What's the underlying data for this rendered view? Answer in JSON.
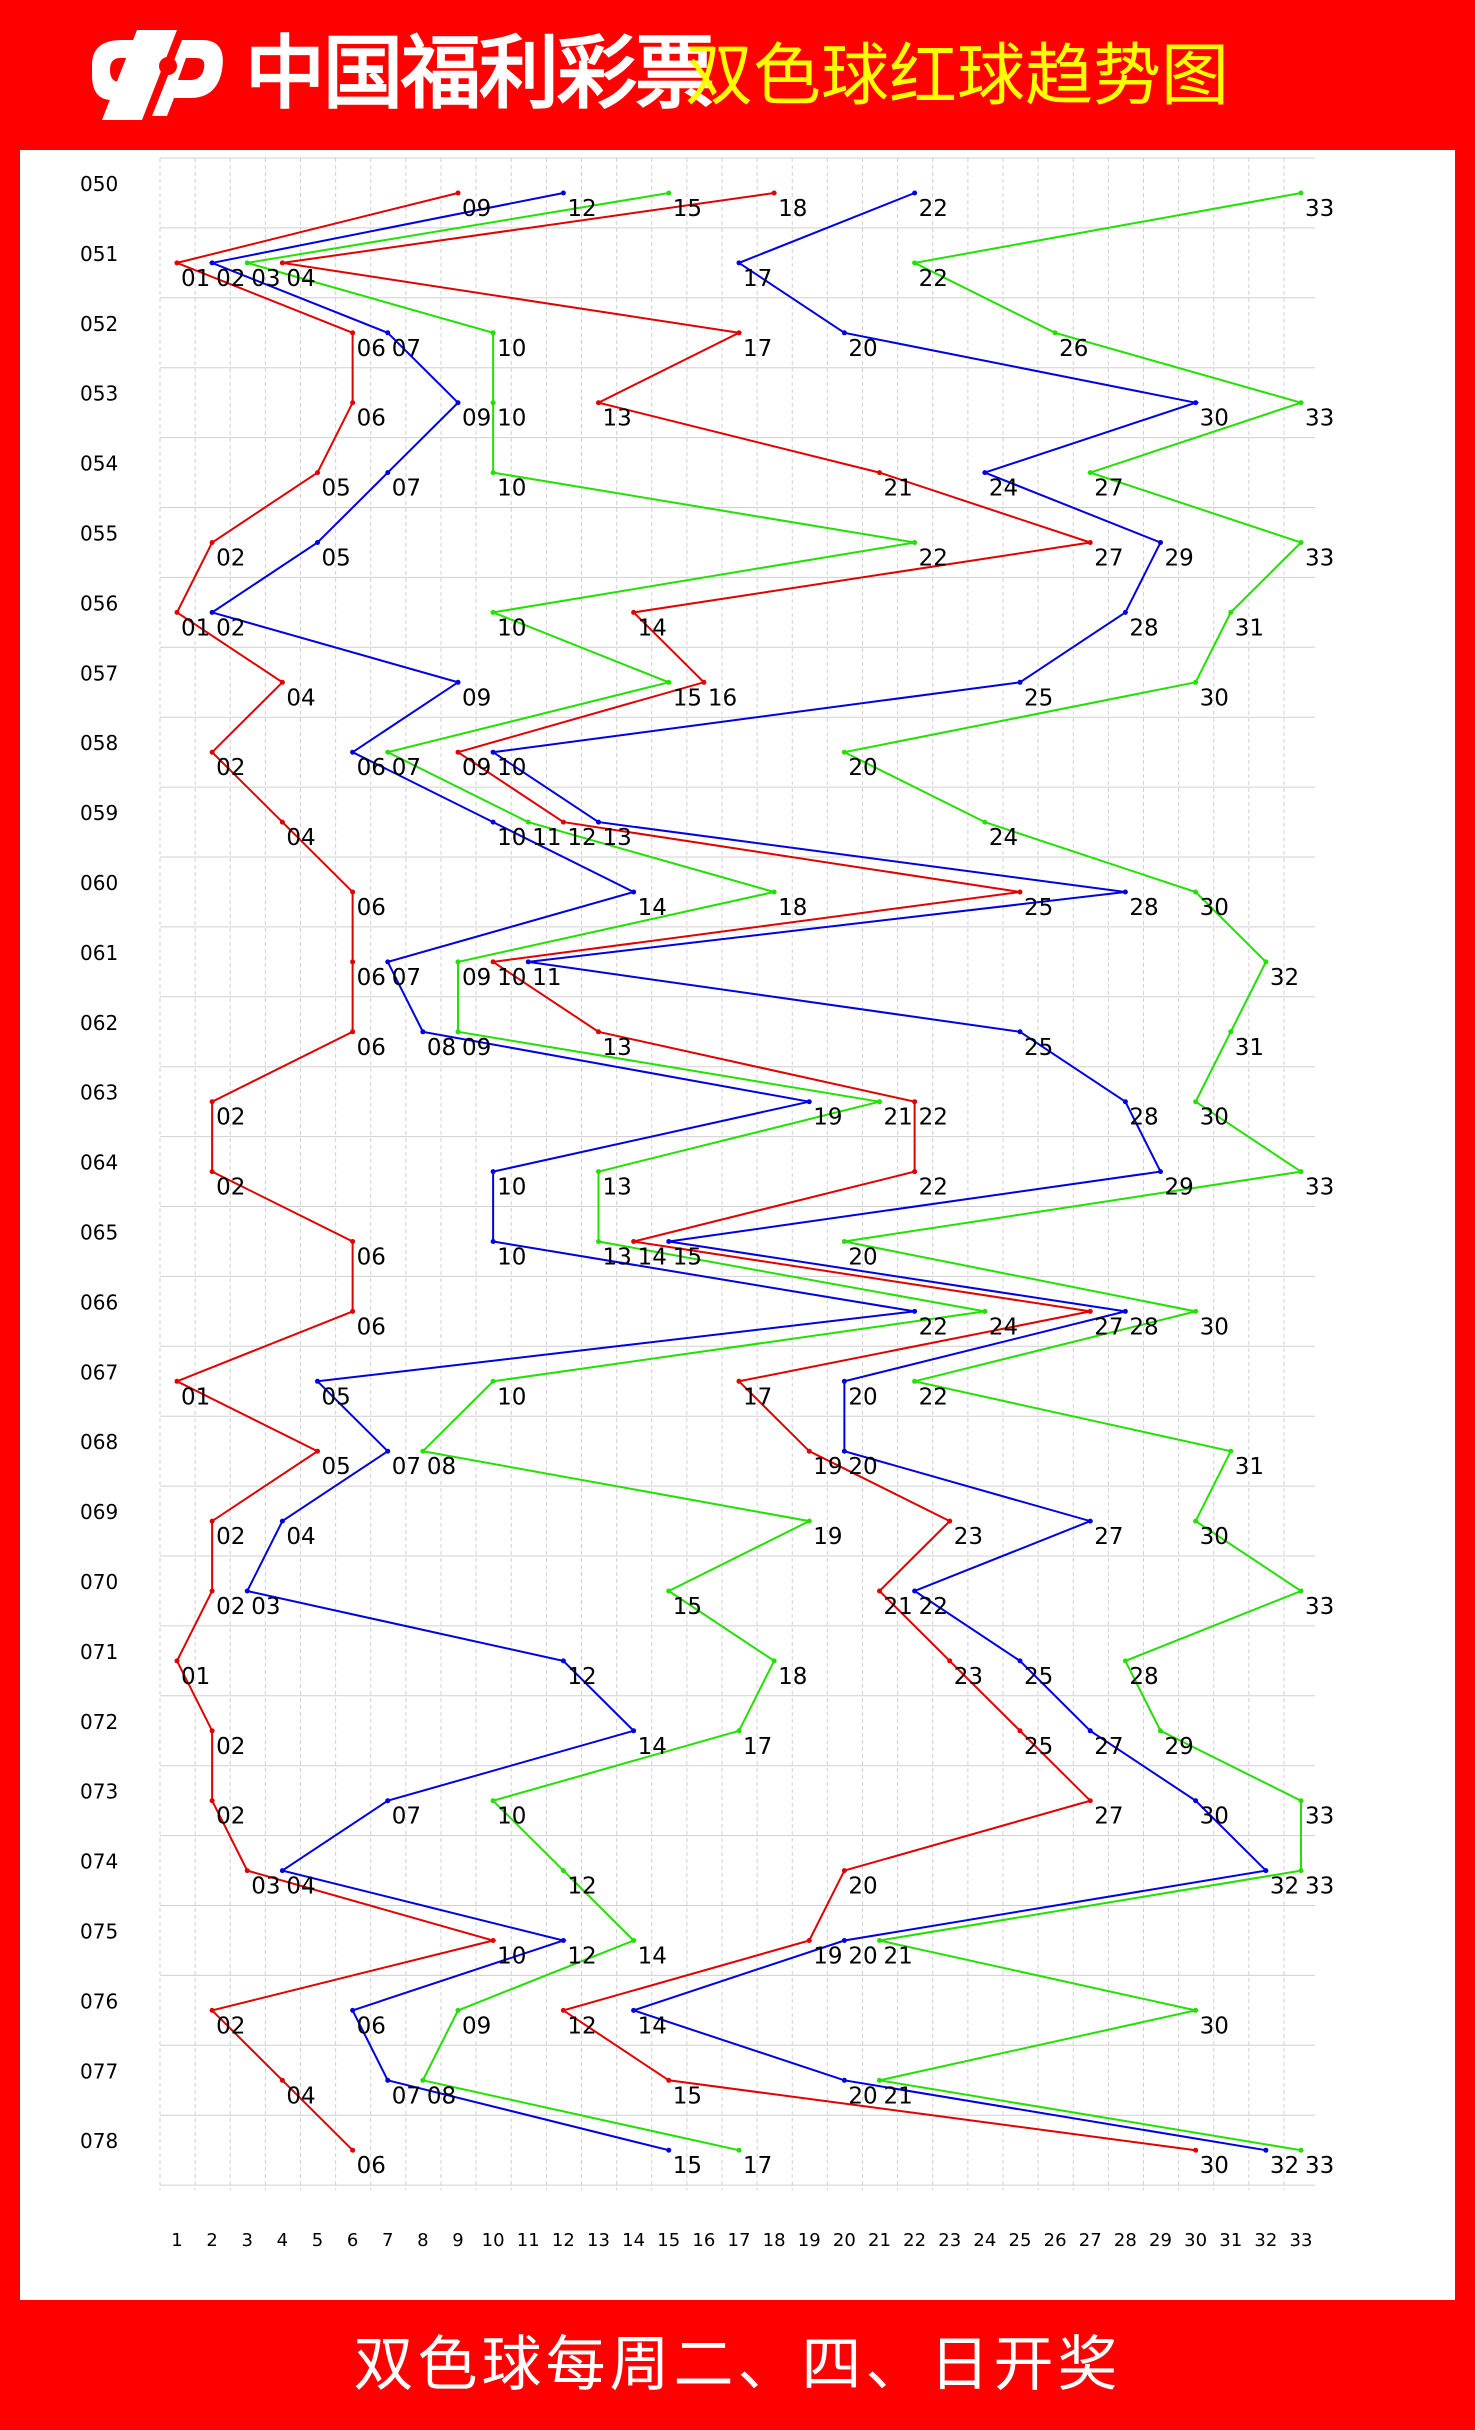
{
  "header": {
    "brand": "中国福利彩票",
    "title": "双色球红球趋势图"
  },
  "footer": {
    "text": "双色球每周二、四、日开奖"
  },
  "colors": {
    "background": "#ff0000",
    "title": "#ffff00",
    "series": [
      "#e00000",
      "#0000e0",
      "#22e000"
    ]
  },
  "chart_data": {
    "type": "line",
    "title": "双色球红球趋势图",
    "x_ticks": [
      1,
      2,
      3,
      4,
      5,
      6,
      7,
      8,
      9,
      10,
      11,
      12,
      13,
      14,
      15,
      16,
      17,
      18,
      19,
      20,
      21,
      22,
      23,
      24,
      25,
      26,
      27,
      28,
      29,
      30,
      31,
      32,
      33
    ],
    "xlim": [
      1,
      33
    ],
    "grid": true,
    "periods": [
      {
        "issue": "050",
        "numbers": [
          9,
          12,
          15,
          18,
          22,
          33
        ]
      },
      {
        "issue": "051",
        "numbers": [
          1,
          2,
          3,
          4,
          17,
          22
        ]
      },
      {
        "issue": "052",
        "numbers": [
          6,
          7,
          10,
          17,
          20,
          26
        ]
      },
      {
        "issue": "053",
        "numbers": [
          6,
          9,
          10,
          13,
          30,
          33
        ]
      },
      {
        "issue": "054",
        "numbers": [
          5,
          7,
          10,
          21,
          24,
          27
        ]
      },
      {
        "issue": "055",
        "numbers": [
          2,
          5,
          22,
          27,
          29,
          33
        ]
      },
      {
        "issue": "056",
        "numbers": [
          1,
          2,
          10,
          14,
          28,
          31
        ]
      },
      {
        "issue": "057",
        "numbers": [
          4,
          9,
          15,
          16,
          25,
          30
        ]
      },
      {
        "issue": "058",
        "numbers": [
          2,
          6,
          7,
          9,
          10,
          20
        ]
      },
      {
        "issue": "059",
        "numbers": [
          4,
          10,
          11,
          12,
          13,
          24
        ]
      },
      {
        "issue": "060",
        "numbers": [
          6,
          14,
          18,
          25,
          28,
          30
        ]
      },
      {
        "issue": "061",
        "numbers": [
          6,
          7,
          9,
          10,
          11,
          32
        ]
      },
      {
        "issue": "062",
        "numbers": [
          6,
          8,
          9,
          13,
          25,
          31
        ]
      },
      {
        "issue": "063",
        "numbers": [
          2,
          19,
          21,
          22,
          28,
          30
        ]
      },
      {
        "issue": "064",
        "numbers": [
          2,
          10,
          13,
          22,
          29,
          33
        ]
      },
      {
        "issue": "065",
        "numbers": [
          6,
          10,
          13,
          14,
          15,
          20
        ]
      },
      {
        "issue": "066",
        "numbers": [
          6,
          22,
          24,
          27,
          28,
          30
        ]
      },
      {
        "issue": "067",
        "numbers": [
          1,
          5,
          10,
          17,
          20,
          22
        ]
      },
      {
        "issue": "068",
        "numbers": [
          5,
          7,
          8,
          19,
          20,
          31
        ]
      },
      {
        "issue": "069",
        "numbers": [
          2,
          4,
          19,
          23,
          27,
          30
        ]
      },
      {
        "issue": "070",
        "numbers": [
          2,
          3,
          15,
          21,
          22,
          33
        ]
      },
      {
        "issue": "071",
        "numbers": [
          1,
          12,
          18,
          23,
          25,
          28
        ]
      },
      {
        "issue": "072",
        "numbers": [
          2,
          14,
          17,
          25,
          27,
          29
        ]
      },
      {
        "issue": "073",
        "numbers": [
          2,
          7,
          10,
          27,
          30,
          33
        ]
      },
      {
        "issue": "074",
        "numbers": [
          3,
          4,
          12,
          20,
          32,
          33
        ]
      },
      {
        "issue": "075",
        "numbers": [
          10,
          12,
          14,
          19,
          20,
          21
        ]
      },
      {
        "issue": "076",
        "numbers": [
          2,
          6,
          9,
          12,
          14,
          30
        ]
      },
      {
        "issue": "077",
        "numbers": [
          4,
          7,
          8,
          15,
          20,
          21
        ]
      },
      {
        "issue": "078",
        "numbers": [
          6,
          15,
          17,
          30,
          32,
          33
        ]
      }
    ]
  }
}
